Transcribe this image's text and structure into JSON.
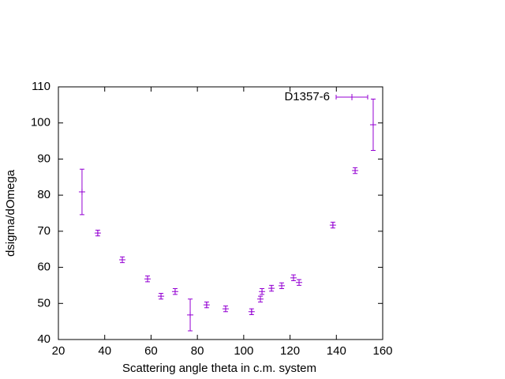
{
  "chart_data": {
    "type": "errorbar",
    "xlabel": "Scattering angle theta in c.m. system",
    "ylabel": "dsigma/dOmega",
    "xlim": [
      20,
      160
    ],
    "ylim": [
      40,
      110
    ],
    "xticks": [
      20,
      40,
      60,
      80,
      100,
      120,
      140,
      160
    ],
    "yticks": [
      40,
      50,
      60,
      70,
      80,
      90,
      100,
      110
    ],
    "legend": "top-right",
    "series": [
      {
        "name": "D1357-6",
        "color": "#9400d3",
        "x": [
          30.2,
          37.0,
          47.6,
          58.5,
          64.3,
          70.4,
          76.9,
          84.0,
          92.2,
          103.4,
          107.2,
          107.9,
          112.0,
          116.4,
          121.5,
          123.9,
          138.5,
          148.1,
          155.9
        ],
        "values": [
          80.9,
          69.5,
          62.1,
          56.8,
          52.0,
          53.3,
          46.8,
          49.6,
          48.5,
          47.7,
          51.2,
          53.3,
          54.2,
          54.9,
          57.1,
          55.8,
          71.7,
          86.8,
          99.5
        ],
        "errors": [
          6.3,
          0.8,
          0.8,
          0.8,
          0.8,
          0.8,
          4.4,
          0.8,
          0.8,
          0.8,
          0.8,
          0.8,
          0.8,
          0.8,
          0.8,
          0.8,
          0.8,
          0.8,
          7.1
        ]
      }
    ]
  }
}
